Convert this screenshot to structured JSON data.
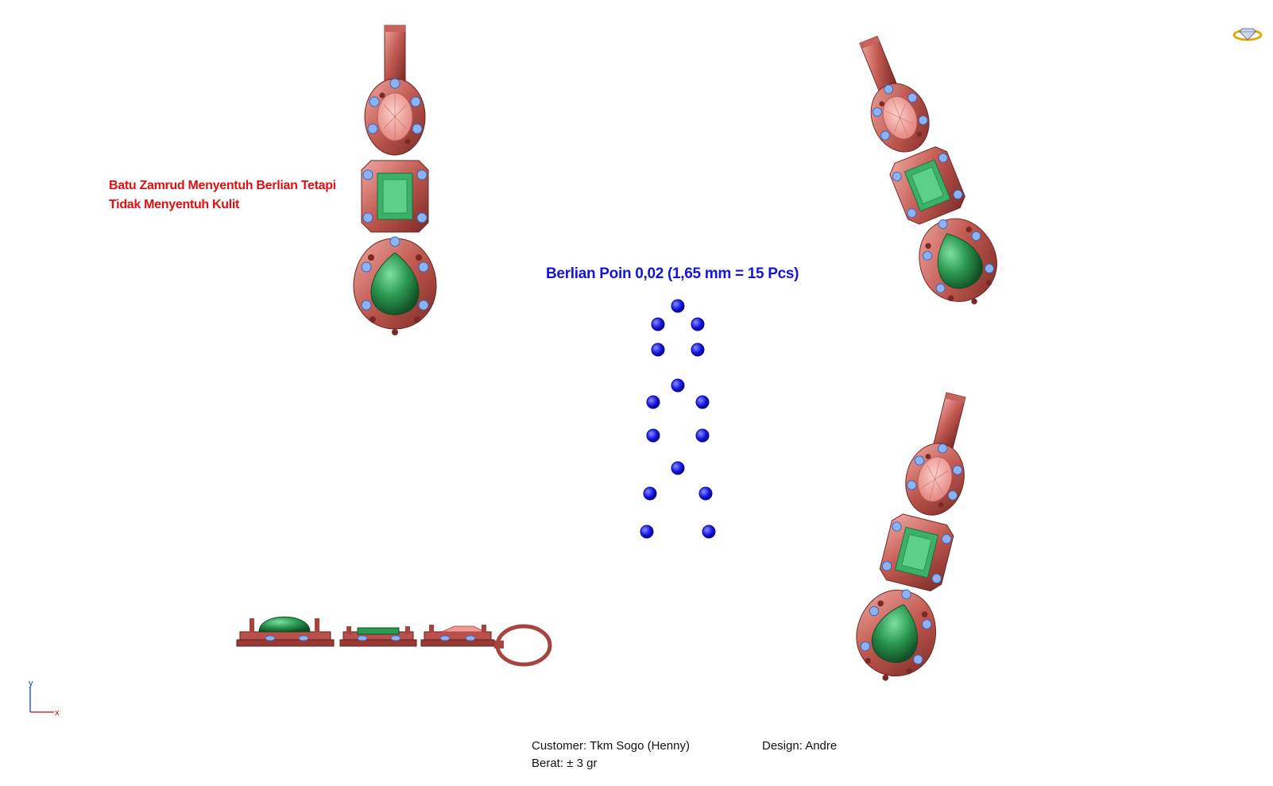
{
  "annotation": {
    "line1": "Batu Zamrud Menyentuh Berlian Tetapi",
    "line2": "Tidak Menyentuh Kulit"
  },
  "diamond_spec": {
    "title": "Berlian Poin 0,02 (1,65 mm = 15 Pcs)",
    "count": 15
  },
  "footer": {
    "customer": "Customer: Tkm Sogo (Henny)",
    "weight": "Berat: ± 3 gr",
    "design": "Design: Andre"
  },
  "axis": {
    "y": "y",
    "x": "x"
  },
  "colors": {
    "metal": "#a8443f",
    "metal_light": "#e98c86",
    "emerald": "#2c9a52",
    "pink_stone": "#f29a94",
    "diamond_blue": "#1616e0",
    "accent_diamond": "#8cb4f4",
    "annotation_red": "#e01010",
    "title_blue": "#1515d6"
  },
  "icons": [
    "ring-diamond-icon",
    "axis-indicator-icon"
  ]
}
